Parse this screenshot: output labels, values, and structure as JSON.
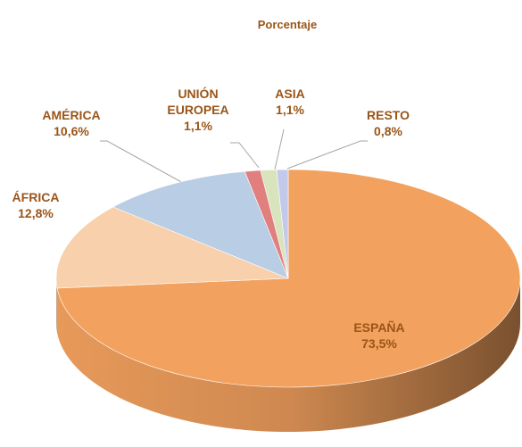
{
  "chart_data": {
    "type": "pie",
    "title": "Porcentaje",
    "categories": [
      "ESPAÑA",
      "ÁFRICA",
      "AMÉRICA",
      "UNIÓN EUROPEA",
      "ASIA",
      "RESTO"
    ],
    "values": [
      73.5,
      12.8,
      10.6,
      1.1,
      1.1,
      0.8
    ],
    "value_labels": [
      "73,5%",
      "12,8%",
      "10,6%",
      "1,1%",
      "1,1%",
      "0,8%"
    ],
    "colors": [
      "#f3a15e",
      "#f8d0ab",
      "#b9cde5",
      "#e07f7e",
      "#d8e4bc",
      "#c3c9ea"
    ]
  }
}
